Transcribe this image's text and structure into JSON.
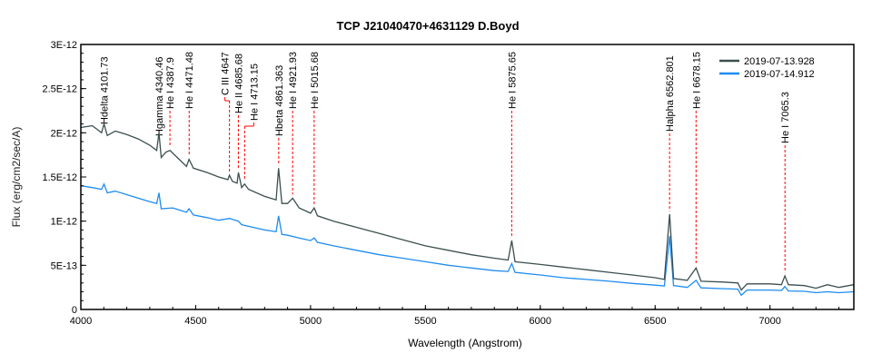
{
  "chart_data": {
    "type": "line",
    "title": "TCP J21040470+4631129   D.Boyd",
    "xlabel": "Wavelength (Angstrom)",
    "ylabel": "Flux (erg/cm2/sec/A)",
    "xlim": [
      4000,
      7365
    ],
    "ylim": [
      0,
      3e-12
    ],
    "x_ticks": [
      4000,
      4500,
      5000,
      5500,
      6000,
      6500,
      7000
    ],
    "x_tick_labels": [
      "4000",
      "4500",
      "5000",
      "5500",
      "6000",
      "6500",
      "7000"
    ],
    "y_ticks": [
      0,
      5e-13,
      1e-12,
      1.5e-12,
      2e-12,
      2.5e-12,
      3e-12
    ],
    "y_tick_labels": [
      "0",
      "5E-13",
      "1E-12",
      "1.5E-12",
      "2E-12",
      "2.5E-12",
      "3E-12"
    ],
    "grid": false,
    "legend": "top-right",
    "series": [
      {
        "name": "2019-07-13.928",
        "color": "#3d4f4f",
        "x": [
          4000,
          4050,
          4090,
          4101,
          4115,
          4150,
          4200,
          4250,
          4300,
          4330,
          4340,
          4350,
          4370,
          4388,
          4420,
          4460,
          4471,
          4490,
          4550,
          4600,
          4640,
          4647,
          4660,
          4680,
          4686,
          4700,
          4713,
          4730,
          4800,
          4850,
          4861,
          4875,
          4900,
          4922,
          4950,
          5000,
          5016,
          5030,
          5100,
          5200,
          5300,
          5400,
          5500,
          5600,
          5700,
          5800,
          5860,
          5876,
          5890,
          6000,
          6100,
          6200,
          6300,
          6400,
          6500,
          6540,
          6563,
          6580,
          6640,
          6678,
          6700,
          6800,
          6860,
          6875,
          6900,
          7000,
          7050,
          7065,
          7080,
          7150,
          7200,
          7250,
          7300,
          7365
        ],
        "y": [
          2.06e-12,
          2.08e-12,
          2e-12,
          2.1e-12,
          1.97e-12,
          2.02e-12,
          1.98e-12,
          1.93e-12,
          1.86e-12,
          1.8e-12,
          2e-12,
          1.72e-12,
          1.78e-12,
          1.8e-12,
          1.72e-12,
          1.62e-12,
          1.7e-12,
          1.6e-12,
          1.55e-12,
          1.5e-12,
          1.47e-12,
          1.52e-12,
          1.45e-12,
          1.43e-12,
          1.55e-12,
          1.38e-12,
          1.42e-12,
          1.36e-12,
          1.28e-12,
          1.24e-12,
          1.6e-12,
          1.2e-12,
          1.2e-12,
          1.26e-12,
          1.15e-12,
          1.09e-12,
          1.15e-12,
          1.06e-12,
          1e-12,
          9.3e-13,
          8.6e-13,
          7.9e-13,
          7.2e-13,
          6.7e-13,
          6.2e-13,
          5.8e-13,
          5.6e-13,
          7.8e-13,
          5.4e-13,
          5.1e-13,
          4.8e-13,
          4.5e-13,
          4.2e-13,
          3.9e-13,
          3.6e-13,
          3.4e-13,
          1.08e-12,
          3.5e-13,
          3.3e-13,
          4.7e-13,
          3.2e-13,
          3.1e-13,
          3e-13,
          2.2e-13,
          2.9e-13,
          2.9e-13,
          2.8e-13,
          3.8e-13,
          2.8e-13,
          2.7e-13,
          2.4e-13,
          2.8e-13,
          2.5e-13,
          2.8e-13
        ]
      },
      {
        "name": "2019-07-14.912",
        "color": "#1e8cf0",
        "x": [
          4000,
          4050,
          4090,
          4101,
          4115,
          4150,
          4200,
          4250,
          4300,
          4330,
          4340,
          4350,
          4400,
          4460,
          4471,
          4490,
          4550,
          4600,
          4647,
          4686,
          4700,
          4800,
          4850,
          4861,
          4875,
          4900,
          4950,
          5000,
          5016,
          5030,
          5100,
          5200,
          5300,
          5400,
          5500,
          5600,
          5700,
          5800,
          5860,
          5876,
          5890,
          6000,
          6100,
          6200,
          6300,
          6400,
          6500,
          6540,
          6563,
          6580,
          6640,
          6678,
          6700,
          6800,
          6860,
          6875,
          6900,
          7000,
          7050,
          7065,
          7080,
          7150,
          7200,
          7250,
          7300,
          7365
        ],
        "y": [
          1.4e-12,
          1.38e-12,
          1.36e-12,
          1.42e-12,
          1.32e-12,
          1.34e-12,
          1.3e-12,
          1.26e-12,
          1.22e-12,
          1.2e-12,
          1.32e-12,
          1.14e-12,
          1.15e-12,
          1.1e-12,
          1.14e-12,
          1.07e-12,
          1.04e-12,
          1.01e-12,
          1.03e-12,
          1e-12,
          9.6e-13,
          9e-13,
          8.8e-13,
          1.06e-12,
          8.5e-13,
          8.4e-13,
          8.1e-13,
          7.8e-13,
          8.1e-13,
          7.6e-13,
          7.2e-13,
          6.7e-13,
          6.2e-13,
          5.8e-13,
          5.4e-13,
          5e-13,
          4.7e-13,
          4.4e-13,
          4.3e-13,
          5.2e-13,
          4.2e-13,
          3.9e-13,
          3.6e-13,
          3.4e-13,
          3.2e-13,
          2.95e-13,
          2.75e-13,
          2.65e-13,
          8.3e-13,
          2.7e-13,
          2.5e-13,
          3.3e-13,
          2.45e-13,
          2.35e-13,
          2.3e-13,
          1.6e-13,
          2.2e-13,
          2.2e-13,
          2.15e-13,
          2.6e-13,
          2.1e-13,
          2.05e-13,
          1.9e-13,
          2e-13,
          1.9e-13,
          2e-13
        ]
      }
    ],
    "annotations": [
      {
        "label": "Hdelta 4101.73",
        "x": 4101.73
      },
      {
        "label": "Hgamma 4340.46",
        "x": 4340.46
      },
      {
        "label": "He I 4387.9",
        "x": 4387.9
      },
      {
        "label": "He I 4471.48",
        "x": 4471.48
      },
      {
        "label": "C III 4647",
        "x": 4647
      },
      {
        "label": "He II 4685.68",
        "x": 4685.68
      },
      {
        "label": "He I 4713.15",
        "x": 4713.15
      },
      {
        "label": "Hbeta 4861.363",
        "x": 4861.363
      },
      {
        "label": "He I 4921.93",
        "x": 4921.93
      },
      {
        "label": "He I 5015.68",
        "x": 5015.68
      },
      {
        "label": "He I 5875.65",
        "x": 5875.65
      },
      {
        "label": "Halpha 6562.801",
        "x": 6562.801
      },
      {
        "label": "He I 6678.15",
        "x": 6678.15
      },
      {
        "label": "He I 7065.3",
        "x": 7065.3
      }
    ],
    "annotation_color": "#ff0000"
  }
}
